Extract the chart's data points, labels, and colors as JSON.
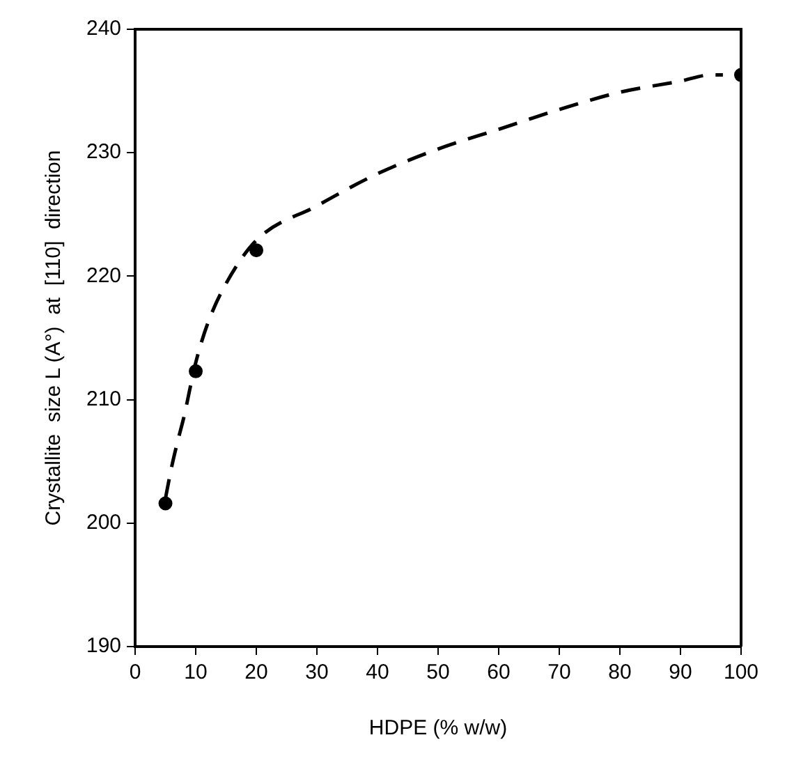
{
  "chart_data": {
    "type": "scatter",
    "xlabel": "HDPE (% w/w)",
    "ylabel": "Crystallite  size L (A°)  at  [110]  direction",
    "xlim": [
      0,
      100
    ],
    "xticks": [
      0,
      10,
      20,
      30,
      40,
      50,
      60,
      70,
      80,
      90,
      100
    ],
    "ylim": [
      190,
      240
    ],
    "yticks": [
      190,
      200,
      210,
      220,
      230,
      240
    ],
    "grid": false,
    "legend": false,
    "series": [
      {
        "color": "#000000",
        "marker": "circle",
        "x": [
          5,
          10,
          20,
          100
        ],
        "values": [
          201.6,
          212.3,
          222.1,
          236.3
        ]
      },
      {
        "type": "line",
        "color": "#000000",
        "line_style": "dashed",
        "marker": "none",
        "x": [
          5,
          6,
          7,
          8,
          10,
          12,
          15,
          20,
          30,
          40,
          50,
          60,
          70,
          80,
          90,
          95,
          97
        ],
        "values": [
          202,
          204.5,
          206.6,
          208.5,
          213,
          216.2,
          219.4,
          222.9,
          225.7,
          228.3,
          230.3,
          231.9,
          233.5,
          234.9,
          235.8,
          236.3,
          236.3
        ]
      }
    ]
  }
}
